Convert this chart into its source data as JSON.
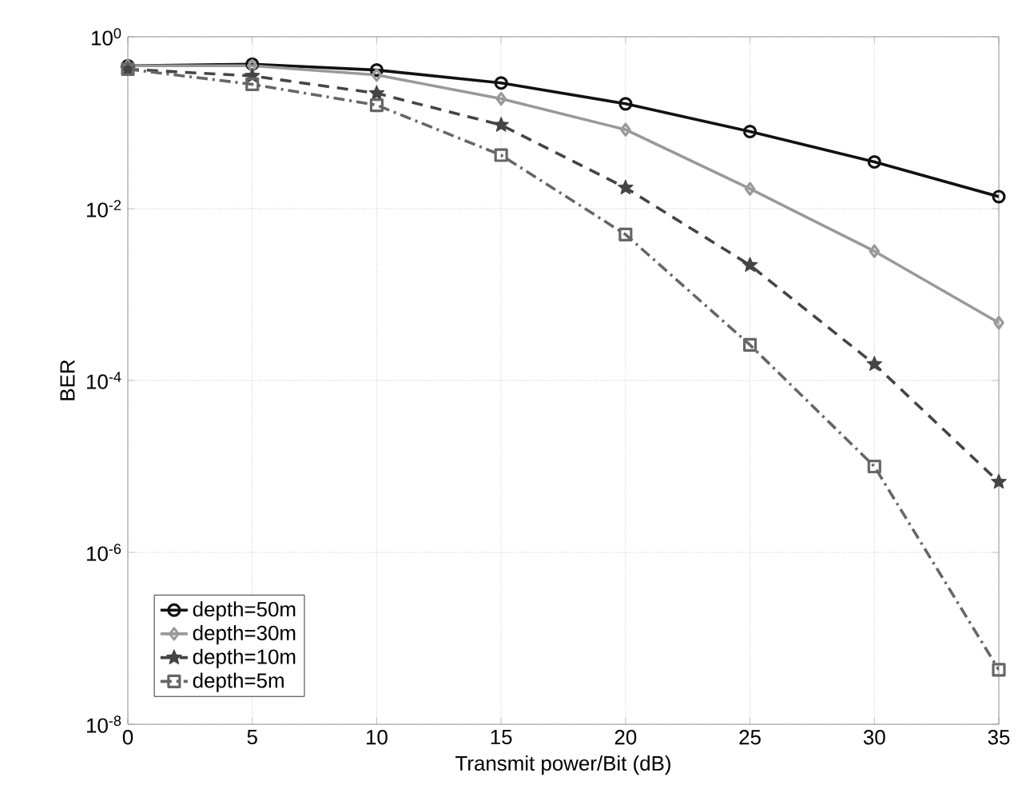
{
  "chart_data": {
    "type": "line",
    "xlabel": "Transmit power/Bit (dB)",
    "ylabel": "BER",
    "x": [
      0,
      5,
      10,
      15,
      20,
      25,
      30,
      35
    ],
    "series": [
      {
        "name": "depth=50m",
        "color": "#111111",
        "marker": "circle",
        "line_style": "solid",
        "values": [
          0.46,
          0.48,
          0.41,
          0.29,
          0.166,
          0.079,
          0.035,
          0.0138
        ]
      },
      {
        "name": "depth=30m",
        "color": "#999999",
        "marker": "diamond",
        "line_style": "solid",
        "values": [
          0.46,
          0.46,
          0.36,
          0.19,
          0.083,
          0.017,
          0.0032,
          0.00047
        ]
      },
      {
        "name": "depth=10m",
        "color": "#444444",
        "marker": "star",
        "line_style": "dashed",
        "values": [
          0.42,
          0.35,
          0.22,
          0.094,
          0.0175,
          0.0022,
          0.000155,
          6.6e-06
        ]
      },
      {
        "name": "depth=5m",
        "color": "#666666",
        "marker": "square",
        "line_style": "dashdot",
        "values": [
          0.42,
          0.28,
          0.16,
          0.042,
          0.005,
          0.00026,
          1e-05,
          4.3e-08
        ]
      }
    ],
    "log": "y",
    "grid": true,
    "legend": "bottom left",
    "xlim": [
      0,
      35
    ],
    "xticks": [
      0,
      5,
      10,
      15,
      20,
      25,
      30,
      35
    ],
    "ylim": [
      1e-08,
      1
    ],
    "yticks": [
      {
        "value": 1e-08,
        "label": "10$^{-8}$"
      },
      {
        "value": 1e-06,
        "label": "10$^{-6}$"
      },
      {
        "value": 0.0001,
        "label": "10$^{-4}$"
      },
      {
        "value": 0.01,
        "label": "10$^{-2}$"
      },
      {
        "value": 1,
        "label": "10$^{0}$"
      }
    ]
  }
}
